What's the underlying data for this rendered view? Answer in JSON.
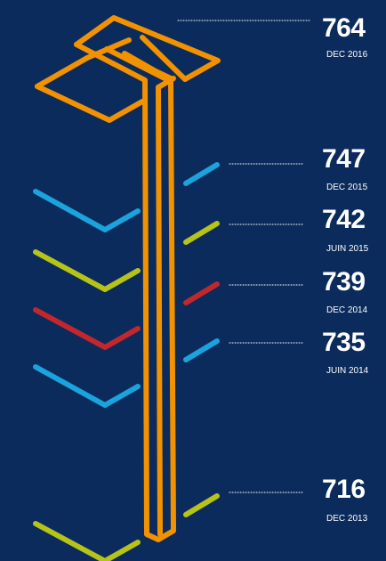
{
  "items": [
    {
      "value": "764",
      "date": "DEC 2016"
    },
    {
      "value": "747",
      "date": "DEC 2015"
    },
    {
      "value": "742",
      "date": "JUIN 2015"
    },
    {
      "value": "739",
      "date": "DEC 2014"
    },
    {
      "value": "735",
      "date": "JUIN 2014"
    },
    {
      "value": "716",
      "date": "DEC 2013"
    }
  ]
}
